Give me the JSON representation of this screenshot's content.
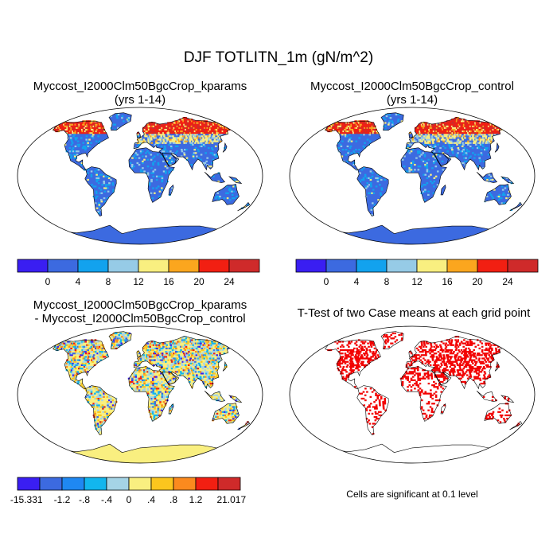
{
  "main_title": "DJF TOTLITN_1m (gN/m^2)",
  "panels": {
    "top_left": {
      "line1": "Myccost_I2000Clm50BgcCrop_kparams",
      "line2": "(yrs 1-14)"
    },
    "top_right": {
      "line1": "Myccost_I2000Clm50BgcCrop_control",
      "line2": "(yrs 1-14)"
    },
    "bottom_left": {
      "line1": "Myccost_I2000Clm50BgcCrop_kparams",
      "line2": "- Myccost_I2000Clm50BgcCrop_control"
    },
    "bottom_right": {
      "line1": "T-Test of two Case means at each grid point"
    }
  },
  "colorbar_abs": {
    "colors": [
      "#3a1ef2",
      "#3c6ae0",
      "#12a2ee",
      "#96cbe6",
      "#f9ef80",
      "#fba61e",
      "#f21f12",
      "#cf2a2a"
    ],
    "labels": [
      "0",
      "4",
      "8",
      "12",
      "16",
      "20",
      "24"
    ]
  },
  "colorbar_diff": {
    "colors": [
      "#3a1ef2",
      "#3c6ae0",
      "#1f88f2",
      "#12b6ee",
      "#a5d4e6",
      "#f9ef80",
      "#fbc61e",
      "#fb8a1e",
      "#f21f12",
      "#cf2a2a"
    ],
    "labels": [
      "-15.331",
      "-1.2",
      "-.8",
      "-.4",
      "0",
      ".4",
      ".8",
      "1.2",
      "21.017"
    ]
  },
  "significance_note": "Cells are significant at 0.1 level",
  "colors": {
    "ocean": "#ffffff",
    "land_base": "#3c6ae0",
    "significant": "#f20000"
  }
}
